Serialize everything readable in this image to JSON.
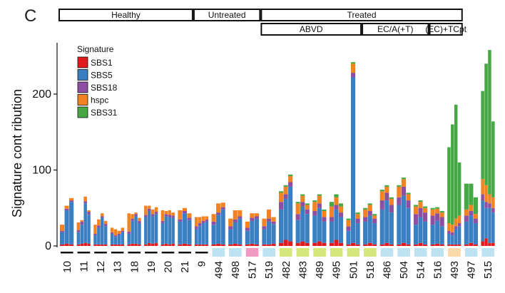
{
  "chart_data": {
    "type": "bar",
    "stacked": true,
    "panel_letter": "C",
    "ylabel": "Signature cont ribution",
    "ylim": [
      0,
      260
    ],
    "yticks": [
      0,
      100,
      200
    ],
    "legend": {
      "title": "Signature",
      "entries": [
        {
          "name": "SBS1",
          "color": "#e31a1c"
        },
        {
          "name": "SBS5",
          "color": "#3a7fc1"
        },
        {
          "name": "SBS18",
          "color": "#8e4fa3"
        },
        {
          "name": "hspc",
          "color": "#f28322"
        },
        {
          "name": "SBS31",
          "color": "#45a845"
        }
      ]
    },
    "group_headers": [
      {
        "label": "Healthy",
        "from": 0,
        "to": 8
      },
      {
        "label": "Untreated",
        "from": 8,
        "to": 12
      },
      {
        "label": "Treated",
        "from": 12,
        "to": 24
      }
    ],
    "subgroup_headers": [
      {
        "label": "ABVD",
        "from": 12,
        "to": 18
      },
      {
        "label": "EC/A(+T)",
        "from": 18,
        "to": 22
      },
      {
        "label": "(EC)+TCpt",
        "from": 22,
        "to": 24
      }
    ],
    "tissue_colors": {
      "healthy": "#111111",
      "bone_marrow": "#bde3f2",
      "other": "#f29ac4",
      "lymph": "#d5e67a",
      "peach": "#fcd9a8"
    },
    "samples": [
      {
        "id": "10",
        "tissue": "healthy",
        "bars": [
          [
            2,
            16,
            2,
            8,
            0
          ],
          [
            3,
            44,
            2,
            4,
            0
          ],
          [
            2,
            56,
            2,
            3,
            0
          ]
        ]
      },
      {
        "id": "11",
        "tissue": "healthy",
        "bars": [
          [
            2,
            16,
            3,
            10,
            0
          ],
          [
            3,
            25,
            4,
            2,
            0
          ],
          [
            4,
            52,
            3,
            6,
            0
          ],
          [
            3,
            38,
            4,
            2,
            0
          ]
        ]
      },
      {
        "id": "12",
        "tissue": "healthy",
        "bars": [
          [
            2,
            12,
            2,
            12,
            0
          ],
          [
            2,
            22,
            3,
            8,
            0
          ],
          [
            2,
            35,
            2,
            4,
            0
          ],
          [
            2,
            24,
            3,
            4,
            0
          ]
        ]
      },
      {
        "id": "13",
        "tissue": "healthy",
        "bars": [
          [
            2,
            14,
            2,
            6,
            0
          ],
          [
            2,
            10,
            2,
            8,
            0
          ],
          [
            2,
            12,
            2,
            4,
            0
          ],
          [
            2,
            16,
            2,
            4,
            0
          ]
        ]
      },
      {
        "id": "18",
        "tissue": "healthy",
        "bars": [
          [
            2,
            14,
            3,
            24,
            0
          ],
          [
            3,
            30,
            3,
            6,
            0
          ],
          [
            3,
            36,
            3,
            2,
            0
          ],
          [
            2,
            28,
            3,
            4,
            0
          ]
        ]
      },
      {
        "id": "19",
        "tissue": "healthy",
        "bars": [
          [
            2,
            36,
            3,
            12,
            0
          ],
          [
            4,
            42,
            3,
            4,
            0
          ],
          [
            3,
            36,
            3,
            6,
            0
          ],
          [
            4,
            38,
            3,
            6,
            0
          ]
        ]
      },
      {
        "id": "20",
        "tissue": "healthy",
        "bars": [
          [
            2,
            28,
            3,
            14,
            0
          ],
          [
            3,
            36,
            3,
            4,
            0
          ],
          [
            2,
            36,
            3,
            6,
            0
          ],
          [
            3,
            34,
            3,
            4,
            0
          ]
        ]
      },
      {
        "id": "21",
        "tissue": "healthy",
        "bars": [
          [
            2,
            30,
            3,
            12,
            0
          ],
          [
            3,
            40,
            3,
            4,
            0
          ],
          [
            2,
            32,
            3,
            6,
            0
          ]
        ]
      },
      {
        "id": "9",
        "tissue": "healthy",
        "bars": [
          [
            2,
            20,
            4,
            12,
            0
          ],
          [
            2,
            24,
            4,
            8,
            0
          ],
          [
            2,
            28,
            3,
            6,
            0
          ],
          [
            2,
            30,
            3,
            4,
            0
          ]
        ]
      },
      {
        "id": "494",
        "tissue": "bone_marrow",
        "bars": [
          [
            2,
            26,
            4,
            10,
            0
          ],
          [
            3,
            38,
            3,
            12,
            0
          ],
          [
            2,
            46,
            3,
            6,
            0
          ]
        ]
      },
      {
        "id": "498",
        "tissue": "bone_marrow",
        "bars": [
          [
            2,
            20,
            4,
            10,
            0
          ],
          [
            3,
            28,
            4,
            12,
            0
          ],
          [
            2,
            34,
            3,
            8,
            0
          ]
        ]
      },
      {
        "id": "517",
        "tissue": "other",
        "bars": [
          [
            2,
            18,
            4,
            8,
            0
          ],
          [
            3,
            30,
            4,
            6,
            0
          ],
          [
            2,
            34,
            3,
            4,
            0
          ]
        ]
      },
      {
        "id": "519",
        "tissue": "bone_marrow",
        "bars": [
          [
            2,
            20,
            4,
            10,
            0
          ],
          [
            2,
            30,
            4,
            12,
            0
          ],
          [
            3,
            26,
            3,
            6,
            0
          ]
        ]
      },
      {
        "id": "482",
        "tissue": "lymph",
        "bars": [
          [
            4,
            44,
            10,
            12,
            2
          ],
          [
            8,
            54,
            6,
            10,
            2
          ],
          [
            6,
            72,
            6,
            8,
            2
          ]
        ]
      },
      {
        "id": "483",
        "tissue": "lymph",
        "bars": [
          [
            4,
            30,
            8,
            14,
            2
          ],
          [
            6,
            46,
            6,
            8,
            2
          ],
          [
            4,
            38,
            6,
            6,
            2
          ]
        ]
      },
      {
        "id": "489",
        "tissue": "lymph",
        "bars": [
          [
            4,
            36,
            6,
            12,
            2
          ],
          [
            6,
            44,
            6,
            10,
            2
          ],
          [
            4,
            28,
            6,
            8,
            2
          ]
        ]
      },
      {
        "id": "495",
        "tissue": "lymph",
        "bars": [
          [
            4,
            28,
            6,
            14,
            6
          ],
          [
            8,
            40,
            6,
            10,
            4
          ],
          [
            4,
            34,
            6,
            8,
            4
          ]
        ]
      },
      {
        "id": "501",
        "tissue": "lymph",
        "bars": [
          [
            2,
            18,
            6,
            8,
            2
          ],
          [
            4,
            218,
            6,
            12,
            2
          ],
          [
            2,
            28,
            6,
            6,
            2
          ]
        ]
      },
      {
        "id": "518",
        "tissue": "lymph",
        "bars": [
          [
            2,
            30,
            6,
            10,
            2
          ],
          [
            4,
            36,
            6,
            8,
            2
          ],
          [
            2,
            28,
            6,
            4,
            2
          ]
        ]
      },
      {
        "id": "486",
        "tissue": "bone_marrow",
        "bars": [
          [
            2,
            46,
            12,
            12,
            2
          ],
          [
            4,
            56,
            10,
            8,
            2
          ],
          [
            2,
            42,
            10,
            8,
            2
          ]
        ]
      },
      {
        "id": "504",
        "tissue": "bone_marrow",
        "bars": [
          [
            2,
            52,
            10,
            14,
            2
          ],
          [
            4,
            62,
            12,
            10,
            2
          ],
          [
            2,
            48,
            10,
            8,
            2
          ]
        ]
      },
      {
        "id": "514",
        "tissue": "bone_marrow",
        "bars": [
          [
            2,
            26,
            14,
            10,
            2
          ],
          [
            4,
            34,
            12,
            8,
            2
          ],
          [
            2,
            30,
            12,
            6,
            2
          ]
        ]
      },
      {
        "id": "516",
        "tissue": "bone_marrow",
        "bars": [
          [
            2,
            26,
            12,
            8,
            2
          ],
          [
            3,
            30,
            10,
            6,
            2
          ],
          [
            2,
            24,
            12,
            6,
            2
          ]
        ]
      },
      {
        "id": "493",
        "tissue": "peach",
        "bars": [
          [
            2,
            14,
            4,
            10,
            100
          ],
          [
            2,
            12,
            4,
            10,
            132
          ],
          [
            2,
            20,
            4,
            10,
            150
          ],
          [
            2,
            24,
            4,
            10,
            70
          ]
        ]
      },
      {
        "id": "497",
        "tissue": "bone_marrow",
        "bars": [
          [
            2,
            30,
            8,
            8,
            34
          ],
          [
            4,
            36,
            6,
            8,
            28
          ],
          [
            2,
            28,
            6,
            6,
            22
          ]
        ]
      },
      {
        "id": "515",
        "tissue": "bone_marrow",
        "bars": [
          [
            6,
            54,
            8,
            20,
            116
          ],
          [
            10,
            40,
            8,
            22,
            160
          ],
          [
            4,
            46,
            6,
            12,
            190
          ],
          [
            4,
            40,
            6,
            14,
            100
          ]
        ]
      }
    ]
  }
}
